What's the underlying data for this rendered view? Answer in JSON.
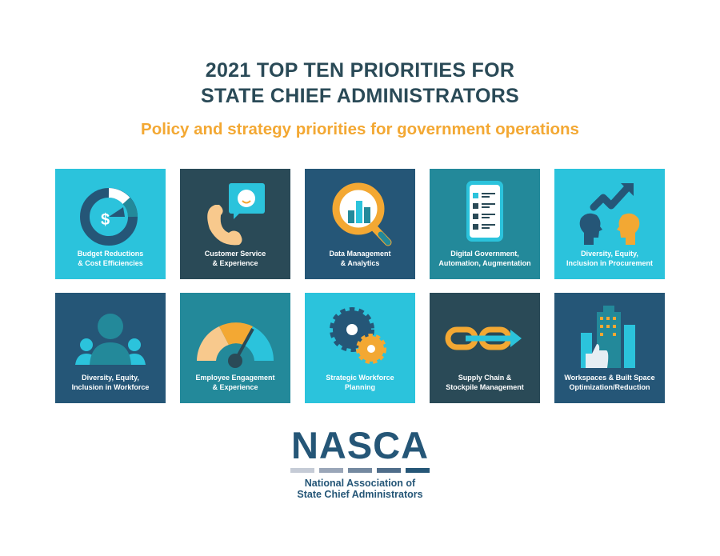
{
  "header": {
    "title_line1": "2021 TOP TEN PRIORITIES FOR",
    "title_line2": "STATE CHIEF ADMINISTRATORS",
    "subtitle": "Policy and strategy priorities for government operations"
  },
  "colors": {
    "cyan": "#2bc3dc",
    "dark": "#2a4a57",
    "navy": "#255677",
    "teal": "#23899a",
    "orange": "#f3a833",
    "peach": "#f8c98d"
  },
  "tiles": [
    {
      "line1": "Budget Reductions",
      "line2": "& Cost Efficiencies",
      "icon": "donut-dollar-icon",
      "bg": "#2bc3dc"
    },
    {
      "line1": "Customer Service",
      "line2": "& Experience",
      "icon": "phone-chat-icon",
      "bg": "#2a4a57"
    },
    {
      "line1": "Data Management",
      "line2": "& Analytics",
      "icon": "magnifier-chart-icon",
      "bg": "#255677"
    },
    {
      "line1": "Digital Government,",
      "line2": "Automation, Augmentation",
      "icon": "phone-checklist-icon",
      "bg": "#23899a"
    },
    {
      "line1": "Diversity, Equity,",
      "line2": "Inclusion in Procurement",
      "icon": "heads-trend-icon",
      "bg": "#2bc3dc"
    },
    {
      "line1": "Diversity, Equity,",
      "line2": "Inclusion in Workforce",
      "icon": "people-icon",
      "bg": "#255677"
    },
    {
      "line1": "Employee Engagement",
      "line2": "& Experience",
      "icon": "gauge-icon",
      "bg": "#23899a"
    },
    {
      "line1": "Strategic Workforce",
      "line2": "Planning",
      "icon": "gears-icon",
      "bg": "#2bc3dc"
    },
    {
      "line1": "Supply Chain &",
      "line2": "Stockpile Management",
      "icon": "chain-arrow-icon",
      "bg": "#2a4a57"
    },
    {
      "line1": "Workspaces & Built Space",
      "line2": "Optimization/Reduction",
      "icon": "buildings-thumb-icon",
      "bg": "#255677"
    }
  ],
  "logo": {
    "name": "NASCA",
    "line1": "National Association of",
    "line2": "State Chief Administrators"
  }
}
